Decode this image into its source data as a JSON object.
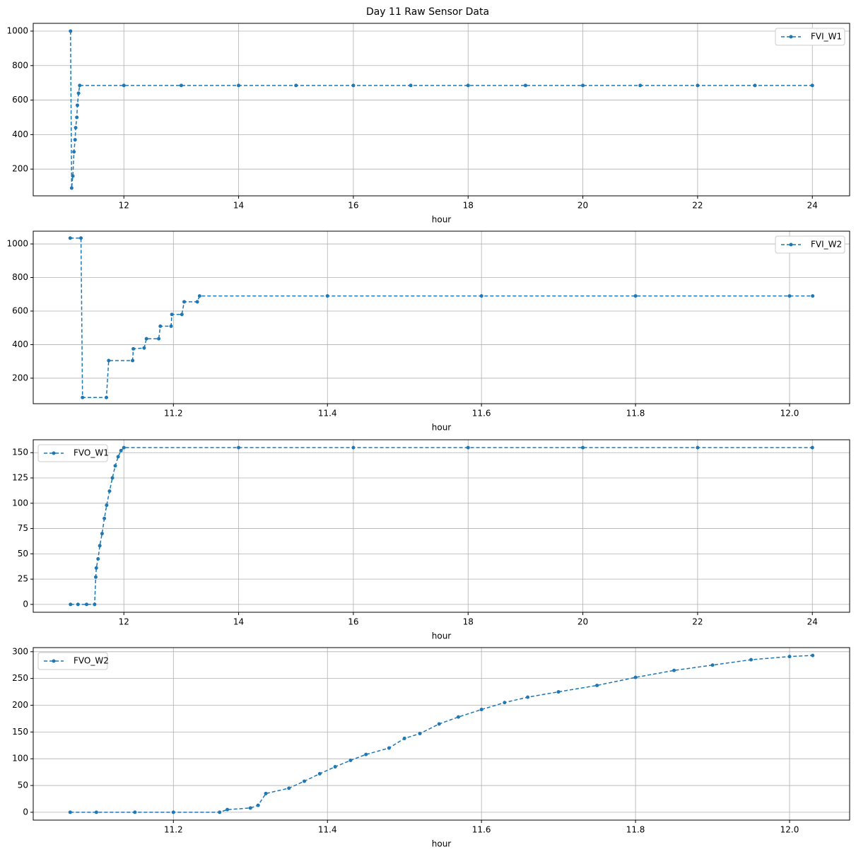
{
  "title": "Day 11 Raw Sensor Data",
  "chart_data": [
    {
      "type": "line",
      "xlabel": "hour",
      "x": [
        11.07,
        11.09,
        11.11,
        11.13,
        11.15,
        11.16,
        11.18,
        11.19,
        11.21,
        11.23,
        12,
        13,
        14,
        15,
        16,
        17,
        18,
        19,
        20,
        21,
        22,
        23,
        24
      ],
      "series": [
        {
          "name": "FVI_W1",
          "color": "#1f77b4",
          "values": [
            1000,
            90,
            160,
            300,
            370,
            440,
            500,
            570,
            640,
            685,
            685,
            685,
            685,
            685,
            685,
            685,
            685,
            685,
            685,
            685,
            685,
            685,
            685
          ]
        }
      ],
      "xlim": [
        10.42,
        24.65
      ],
      "ylim": [
        45,
        1045
      ],
      "xticks": [
        12,
        14,
        16,
        18,
        20,
        22,
        24
      ],
      "yticks": [
        200,
        400,
        600,
        800,
        1000
      ],
      "grid": true,
      "legend": "upper right"
    },
    {
      "type": "line",
      "xlabel": "hour",
      "x": [
        11.066,
        11.08,
        11.082,
        11.113,
        11.116,
        11.147,
        11.148,
        11.162,
        11.165,
        11.181,
        11.183,
        11.197,
        11.198,
        11.211,
        11.214,
        11.231,
        11.234,
        11.4,
        11.6,
        11.8,
        12.0,
        12.03
      ],
      "series": [
        {
          "name": "FVI_W2",
          "color": "#1f77b4",
          "values": [
            1035,
            1035,
            85,
            85,
            305,
            305,
            375,
            380,
            435,
            435,
            510,
            510,
            580,
            580,
            655,
            655,
            690,
            690,
            690,
            690,
            690,
            690
          ]
        }
      ],
      "xlim": [
        11.018,
        12.078
      ],
      "ylim": [
        48,
        1076
      ],
      "xticks": [
        11.2,
        11.4,
        11.6,
        11.8,
        {
          "value": 12,
          "label": "12.0"
        }
      ],
      "yticks": [
        200,
        400,
        600,
        800,
        1000
      ],
      "grid": true,
      "legend": "upper right"
    },
    {
      "type": "line",
      "xlabel": "hour",
      "x": [
        11.07,
        11.2,
        11.35,
        11.49,
        11.51,
        11.52,
        11.55,
        11.58,
        11.62,
        11.66,
        11.7,
        11.75,
        11.8,
        11.85,
        11.9,
        11.95,
        12.0,
        14,
        16,
        18,
        20,
        22,
        24
      ],
      "series": [
        {
          "name": "FVO_W1",
          "color": "#1f77b4",
          "values": [
            0,
            0,
            0,
            0,
            27,
            36,
            45,
            58,
            70,
            85,
            98,
            112,
            125,
            137,
            146,
            152,
            155,
            155,
            155,
            155,
            155,
            155,
            155
          ]
        }
      ],
      "xlim": [
        10.42,
        24.65
      ],
      "ylim": [
        -7.75,
        162.75
      ],
      "xticks": [
        12,
        14,
        16,
        18,
        20,
        22,
        24
      ],
      "yticks": [
        0,
        25,
        50,
        75,
        100,
        125,
        150
      ],
      "grid": true,
      "legend": "upper left"
    },
    {
      "type": "line",
      "xlabel": "hour",
      "x": [
        11.066,
        11.1,
        11.15,
        11.2,
        11.26,
        11.27,
        11.3,
        11.31,
        11.32,
        11.35,
        11.37,
        11.39,
        11.41,
        11.43,
        11.45,
        11.48,
        11.5,
        11.52,
        11.545,
        11.57,
        11.6,
        11.63,
        11.66,
        11.7,
        11.75,
        11.8,
        11.85,
        11.9,
        11.95,
        12.0,
        12.03
      ],
      "series": [
        {
          "name": "FVO_W2",
          "color": "#1f77b4",
          "values": [
            0,
            0,
            0,
            0,
            0,
            5,
            8,
            13,
            35,
            45,
            58,
            72,
            85,
            97,
            108,
            120,
            138,
            147,
            165,
            178,
            192,
            205,
            215,
            225,
            237,
            252,
            265,
            275,
            285,
            291,
            293
          ]
        }
      ],
      "xlim": [
        11.018,
        12.078
      ],
      "ylim": [
        -14.65,
        307.65
      ],
      "xticks": [
        11.2,
        11.4,
        11.6,
        11.8,
        {
          "value": 12,
          "label": "12.0"
        }
      ],
      "yticks": [
        0,
        50,
        100,
        150,
        200,
        250,
        300
      ],
      "grid": true,
      "legend": "upper left"
    }
  ]
}
